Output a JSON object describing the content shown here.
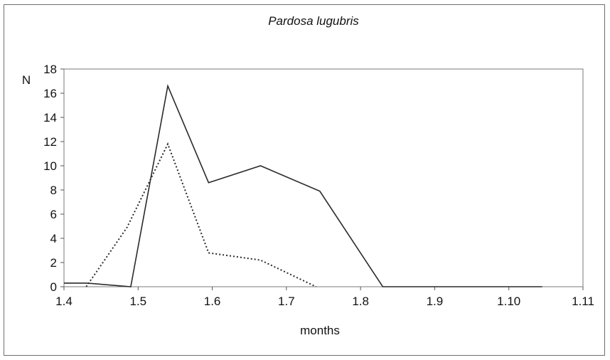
{
  "chart_data": {
    "type": "line",
    "title": "Pardosa lugubris",
    "xlabel": "months",
    "ylabel": "N",
    "x_tick_labels": [
      "1.4",
      "1.5",
      "1.6",
      "1.7",
      "1.8",
      "1.9",
      "1.10",
      "1.11"
    ],
    "y_ticks": [
      0,
      2,
      4,
      6,
      8,
      10,
      12,
      14,
      16,
      18
    ],
    "ylim": [
      0,
      18
    ],
    "grid": false,
    "legend": "none",
    "series": [
      {
        "style": "solid",
        "color": "#2a2a2a",
        "points": [
          [
            0.0,
            0.3
          ],
          [
            0.3,
            0.3
          ],
          [
            0.9,
            0.0
          ],
          [
            1.4,
            16.6
          ],
          [
            1.95,
            8.6
          ],
          [
            2.65,
            10.0
          ],
          [
            3.45,
            7.9
          ],
          [
            4.3,
            0.0
          ],
          [
            6.45,
            0.0
          ]
        ]
      },
      {
        "style": "dotted",
        "color": "#2a2a2a",
        "points": [
          [
            0.3,
            0.0
          ],
          [
            0.85,
            4.9
          ],
          [
            1.4,
            11.8
          ],
          [
            1.95,
            2.8
          ],
          [
            2.65,
            2.2
          ],
          [
            3.4,
            0.0
          ]
        ]
      }
    ]
  }
}
